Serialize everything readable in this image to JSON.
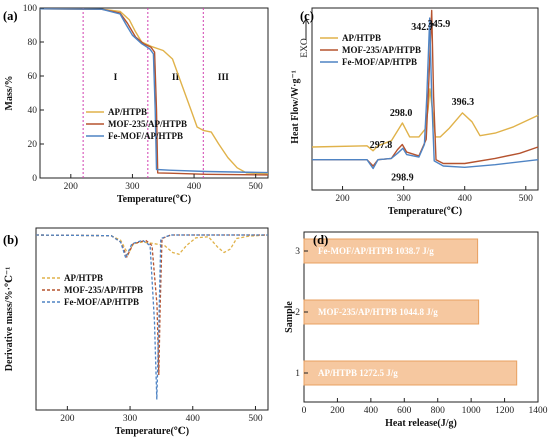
{
  "panels": {
    "a": {
      "label": "(a)",
      "xlabel": "Temperature(℃)",
      "ylabel": "Mass/%",
      "xlim": [
        150,
        520
      ],
      "ylim": [
        0,
        100
      ],
      "xticks": [
        200,
        300,
        400,
        500
      ],
      "yticks": [
        0,
        20,
        40,
        60,
        80,
        100
      ],
      "regions": [
        "I",
        "II",
        "III"
      ],
      "dividers_x": [
        220,
        325,
        415
      ],
      "legend": [
        "AP/HTPB",
        "MOF-235/AP/HTPB",
        "Fe-MOF/AP/HTPB"
      ]
    },
    "b": {
      "label": "(b)",
      "xlabel": "Temperature(℃)",
      "ylabel": "Derivative mass/%·℃⁻¹",
      "xlim": [
        150,
        520
      ],
      "xticks": [
        200,
        300,
        400,
        500
      ],
      "legend": [
        "AP/HTPB",
        "MOF-235/AP/HTPB",
        "Fe-MOF/AP/HTPB"
      ]
    },
    "c": {
      "label": "(c)",
      "xlabel": "Temperature(℃)",
      "ylabel": "Heat Flow/W·g⁻¹",
      "exo": "EXO",
      "xlim": [
        150,
        520
      ],
      "xticks": [
        200,
        300,
        400,
        500
      ],
      "annotations": [
        "342.7",
        "345.9",
        "298.0",
        "396.3",
        "297.8",
        "298.9"
      ],
      "legend": [
        "AP/HTPB",
        "MOF-235/AP/HTPB",
        "Fe-MOF/AP/HTPB"
      ]
    },
    "d": {
      "label": "(d)",
      "xlabel": "Heat release(J/g)",
      "ylabel": "Sample",
      "xlim": [
        0,
        1400
      ],
      "xticks": [
        0,
        200,
        400,
        600,
        800,
        1000,
        1200,
        1400
      ],
      "yticks": [
        "1",
        "2",
        "3"
      ],
      "bar_labels": [
        "Fe-MOF/AP/HTPB    1038.7 J/g",
        "MOF-235/AP/HTPB    1044.8 J/g",
        "AP/HTPB    1272.5 J/g"
      ]
    }
  },
  "colors": {
    "ap_htpb": "#e0b24a",
    "mof235": "#b5532f",
    "femof": "#4f84c4",
    "region": "#d13fb0",
    "bar_fill": "#f6c8a0",
    "bar_edge": "#e8a060"
  },
  "chart_data": [
    {
      "type": "line",
      "title": "",
      "xlabel": "Temperature(℃)",
      "ylabel": "Mass/%",
      "xlim": [
        150,
        520
      ],
      "ylim": [
        0,
        100
      ],
      "grid": false,
      "legend_position": "bottom-left",
      "series": [
        {
          "name": "AP/HTPB",
          "points": [
            [
              150,
              99.5
            ],
            [
              250,
              99.3
            ],
            [
              280,
              98
            ],
            [
              295,
              93
            ],
            [
              305,
              86
            ],
            [
              315,
              80
            ],
            [
              330,
              77.5
            ],
            [
              350,
              75
            ],
            [
              365,
              70
            ],
            [
              380,
              55
            ],
            [
              395,
              40
            ],
            [
              405,
              30
            ],
            [
              415,
              28
            ],
            [
              428,
              27
            ],
            [
              440,
              20
            ],
            [
              455,
              12
            ],
            [
              470,
              6
            ],
            [
              485,
              3
            ],
            [
              520,
              2.5
            ]
          ]
        },
        {
          "name": "MOF-235/AP/HTPB",
          "points": [
            [
              150,
              99.5
            ],
            [
              250,
              99.3
            ],
            [
              280,
              97
            ],
            [
              292,
              91
            ],
            [
              305,
              83
            ],
            [
              318,
              79
            ],
            [
              330,
              77
            ],
            [
              336,
              74
            ],
            [
              339,
              40
            ],
            [
              341,
              3
            ],
            [
              360,
              2.8
            ],
            [
              420,
              2.2
            ],
            [
              520,
              1.8
            ]
          ]
        },
        {
          "name": "Fe-MOF/AP/HTPB",
          "points": [
            [
              150,
              99.5
            ],
            [
              250,
              99.3
            ],
            [
              280,
              96.5
            ],
            [
              290,
              90
            ],
            [
              300,
              84
            ],
            [
              315,
              79
            ],
            [
              328,
              76
            ],
            [
              334,
              73
            ],
            [
              337,
              40
            ],
            [
              339,
              5
            ],
            [
              360,
              4.6
            ],
            [
              420,
              3.8
            ],
            [
              520,
              3.2
            ]
          ]
        }
      ]
    },
    {
      "type": "line",
      "title": "",
      "xlabel": "Temperature(℃)",
      "ylabel": "Derivative mass/%·℃⁻¹",
      "xlim": [
        150,
        520
      ],
      "ylim": [
        -5.0,
        0.2
      ],
      "grid": false,
      "legend_position": "bottom-left",
      "series": [
        {
          "name": "AP/HTPB",
          "points": [
            [
              150,
              0
            ],
            [
              270,
              -0.02
            ],
            [
              285,
              -0.15
            ],
            [
              297,
              -0.55
            ],
            [
              305,
              -0.25
            ],
            [
              320,
              -0.2
            ],
            [
              340,
              -0.25
            ],
            [
              355,
              -0.3
            ],
            [
              368,
              -0.5
            ],
            [
              378,
              -0.55
            ],
            [
              390,
              -0.3
            ],
            [
              405,
              -0.08
            ],
            [
              425,
              -0.05
            ],
            [
              440,
              -0.35
            ],
            [
              450,
              -0.5
            ],
            [
              460,
              -0.4
            ],
            [
              470,
              -0.1
            ],
            [
              490,
              -0.03
            ],
            [
              520,
              0
            ]
          ]
        },
        {
          "name": "MOF-235/AP/HTPB",
          "points": [
            [
              150,
              0
            ],
            [
              270,
              -0.02
            ],
            [
              285,
              -0.2
            ],
            [
              295,
              -0.62
            ],
            [
              305,
              -0.25
            ],
            [
              325,
              -0.15
            ],
            [
              335,
              -0.3
            ],
            [
              343,
              -2.0
            ],
            [
              345.9,
              -4.0
            ],
            [
              348,
              -2.0
            ],
            [
              351,
              -0.1
            ],
            [
              365,
              0
            ],
            [
              520,
              0
            ]
          ]
        },
        {
          "name": "Fe-MOF/AP/HTPB",
          "points": [
            [
              150,
              0
            ],
            [
              270,
              -0.02
            ],
            [
              285,
              -0.2
            ],
            [
              293,
              -0.65
            ],
            [
              303,
              -0.25
            ],
            [
              320,
              -0.15
            ],
            [
              332,
              -0.3
            ],
            [
              339,
              -2.5
            ],
            [
              342.7,
              -4.7
            ],
            [
              346,
              -2.5
            ],
            [
              349,
              -0.1
            ],
            [
              365,
              0
            ],
            [
              520,
              0
            ]
          ]
        }
      ]
    },
    {
      "type": "line",
      "title": "",
      "xlabel": "Temperature(℃)",
      "ylabel": "Heat Flow/W·g⁻¹",
      "xlim": [
        150,
        520
      ],
      "ylim": [
        -1.2,
        6.0
      ],
      "grid": false,
      "legend_position": "top-right",
      "series": [
        {
          "name": "AP/HTPB",
          "points": [
            [
              150,
              0.5
            ],
            [
              240,
              0.55
            ],
            [
              250,
              0.35
            ],
            [
              258,
              0.55
            ],
            [
              280,
              0.75
            ],
            [
              298,
              1.45
            ],
            [
              310,
              0.9
            ],
            [
              325,
              0.9
            ],
            [
              335,
              1.2
            ],
            [
              340,
              2.0
            ],
            [
              343,
              2.8
            ],
            [
              347,
              2.0
            ],
            [
              352,
              0.9
            ],
            [
              360,
              0.9
            ],
            [
              375,
              1.25
            ],
            [
              396.3,
              1.85
            ],
            [
              412,
              1.5
            ],
            [
              425,
              0.95
            ],
            [
              450,
              1.05
            ],
            [
              480,
              1.3
            ],
            [
              520,
              1.75
            ]
          ]
        },
        {
          "name": "MOF-235/AP/HTPB",
          "points": [
            [
              150,
              0.0
            ],
            [
              240,
              0.0
            ],
            [
              250,
              -0.25
            ],
            [
              258,
              0.0
            ],
            [
              280,
              0.05
            ],
            [
              290,
              0.4
            ],
            [
              297.8,
              0.6
            ],
            [
              305,
              0.3
            ],
            [
              325,
              0.15
            ],
            [
              337,
              0.8
            ],
            [
              341,
              3.0
            ],
            [
              345.9,
              5.9
            ],
            [
              349,
              2.5
            ],
            [
              353,
              0.0
            ],
            [
              365,
              -0.15
            ],
            [
              400,
              -0.15
            ],
            [
              450,
              0.05
            ],
            [
              490,
              0.25
            ],
            [
              520,
              0.5
            ]
          ]
        },
        {
          "name": "Fe-MOF/AP/HTPB",
          "points": [
            [
              150,
              0.0
            ],
            [
              240,
              0.0
            ],
            [
              250,
              -0.35
            ],
            [
              258,
              0.0
            ],
            [
              280,
              0.05
            ],
            [
              290,
              0.25
            ],
            [
              298.9,
              0.45
            ],
            [
              305,
              0.2
            ],
            [
              325,
              0.1
            ],
            [
              334,
              0.6
            ],
            [
              338,
              2.5
            ],
            [
              342.7,
              5.6
            ],
            [
              346,
              2.5
            ],
            [
              350,
              -0.05
            ],
            [
              365,
              -0.25
            ],
            [
              400,
              -0.3
            ],
            [
              450,
              -0.2
            ],
            [
              520,
              0.0
            ]
          ]
        }
      ]
    },
    {
      "type": "bar",
      "orientation": "horizontal",
      "title": "",
      "xlabel": "Heat release(J/g)",
      "ylabel": "Sample",
      "xlim": [
        0,
        1400
      ],
      "categories": [
        "1",
        "2",
        "3"
      ],
      "values": [
        1272.5,
        1044.8,
        1038.7
      ],
      "series_names": [
        "AP/HTPB",
        "MOF-235/AP/HTPB",
        "Fe-MOF/AP/HTPB"
      ]
    }
  ]
}
